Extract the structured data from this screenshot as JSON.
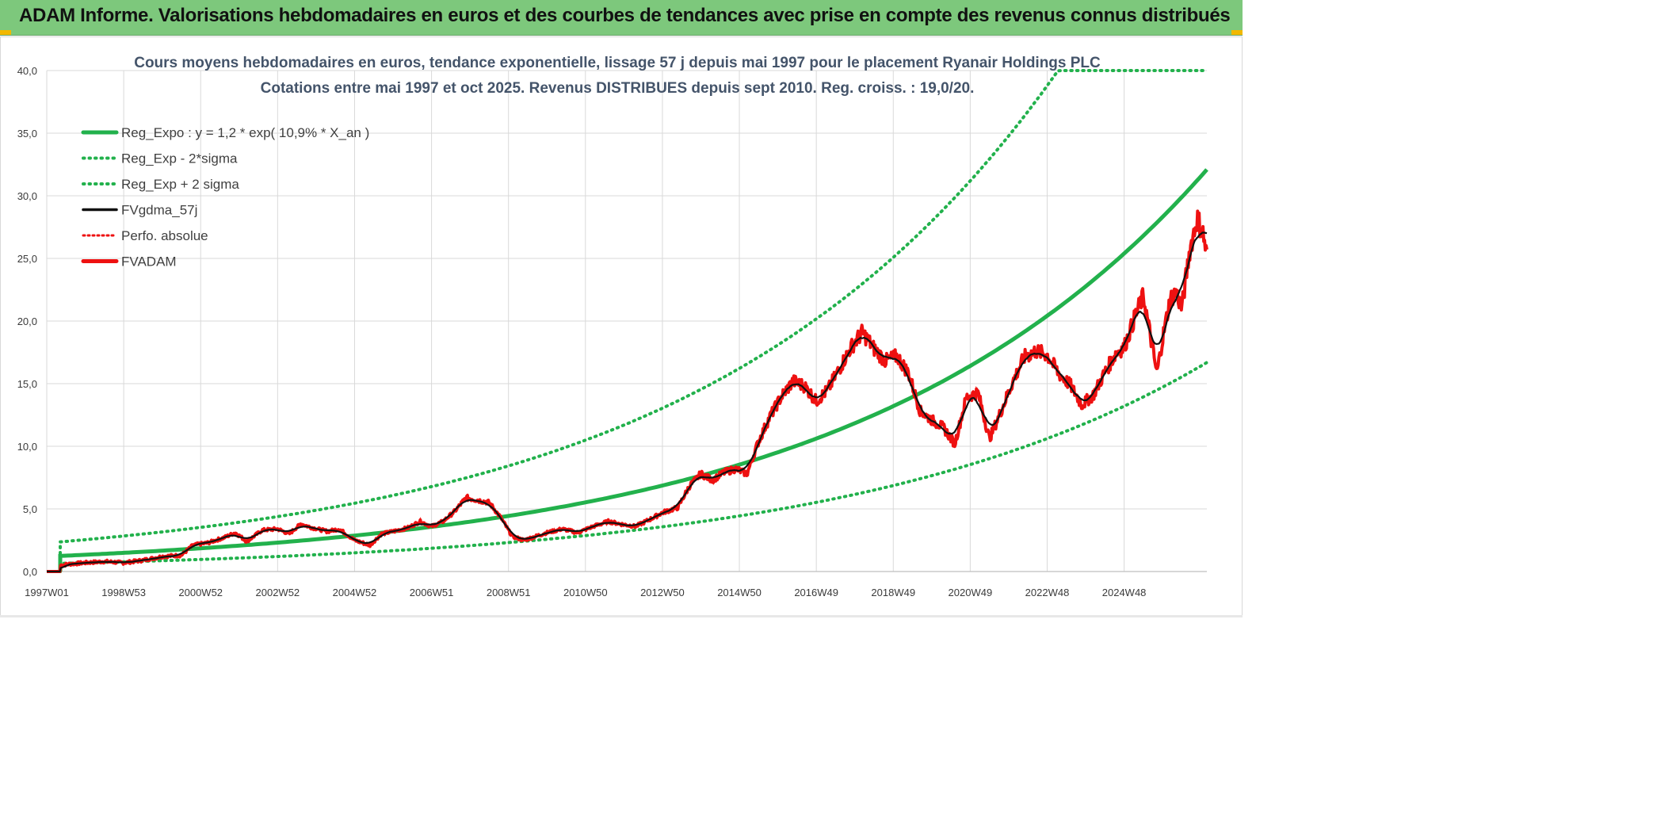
{
  "header": {
    "title": "ADAM Informe. Valorisations hebdomadaires en euros et des courbes de tendances avec prise en compte des revenus connus distribués"
  },
  "colors": {
    "header_bg": "#7dc87c",
    "green": "#22b14c",
    "green_dotted": "#22b14c",
    "black": "#111111",
    "red": "#ee1111",
    "red_dotted": "#ee1111",
    "grid": "#d9d9d9"
  },
  "chart_data": {
    "type": "line",
    "title": "Cours moyens hebdomadaires en euros, tendance exponentielle, lissage 57 j depuis mai 1997 pour le placement Ryanair Holdings PLC",
    "subtitle": "Cotations entre mai 1997 et oct 2025. Revenus DISTRIBUES depuis sept 2010. Reg. croiss. : 19,0/20.",
    "xlabel": "",
    "ylabel": "",
    "ylim": [
      0,
      40
    ],
    "yticks": [
      "0,0",
      "5,0",
      "10,0",
      "15,0",
      "20,0",
      "25,0",
      "30,0",
      "35,0",
      "40,0"
    ],
    "x_range_years": [
      1997.0,
      2025.8
    ],
    "xtick_labels": [
      "1997W01",
      "1998W53",
      "2000W52",
      "2002W52",
      "2004W52",
      "2006W51",
      "2008W51",
      "2010W50",
      "2012W50",
      "2014W50",
      "2016W49",
      "2018W49",
      "2020W49",
      "2022W48",
      "2024W48"
    ],
    "xtick_years": [
      1997.0,
      1999.0,
      2001.0,
      2003.0,
      2005.0,
      2007.0,
      2009.0,
      2011.0,
      2013.0,
      2015.0,
      2017.0,
      2019.0,
      2021.0,
      2023.0,
      2025.0
    ],
    "legend_position": "top-left",
    "regression": {
      "a": 1.2,
      "rate": 0.109,
      "start_year": 1997.35,
      "sigma_factor_upper": 1.9,
      "sigma_factor_lower": 0.52,
      "cap": 40
    },
    "series": [
      {
        "name": "Reg_Expo : y = 1,2 * exp( 10,9% *  X_an )",
        "style": "green-solid"
      },
      {
        "name": "Reg_Exp - 2*sigma",
        "style": "green-dotted"
      },
      {
        "name": "Reg_Exp + 2 sigma",
        "style": "green-dotted"
      },
      {
        "name": "FVgdma_57j",
        "style": "black-solid"
      },
      {
        "name": "Perfo. absolue",
        "style": "red-dotted"
      },
      {
        "name": "FVADAM",
        "style": "red-solid"
      }
    ],
    "fvadam_points": [
      [
        1997.0,
        0.0
      ],
      [
        1997.35,
        0.0
      ],
      [
        1997.36,
        0.5
      ],
      [
        1997.6,
        0.6
      ],
      [
        1998.0,
        0.7
      ],
      [
        1998.5,
        0.8
      ],
      [
        1999.0,
        0.7
      ],
      [
        1999.5,
        0.9
      ],
      [
        2000.0,
        1.2
      ],
      [
        2000.5,
        1.3
      ],
      [
        2000.8,
        2.1
      ],
      [
        2001.2,
        2.3
      ],
      [
        2001.6,
        2.7
      ],
      [
        2001.9,
        3.1
      ],
      [
        2002.2,
        2.4
      ],
      [
        2002.6,
        3.3
      ],
      [
        2003.0,
        3.4
      ],
      [
        2003.3,
        3.0
      ],
      [
        2003.6,
        3.8
      ],
      [
        2003.9,
        3.5
      ],
      [
        2004.3,
        3.2
      ],
      [
        2004.6,
        3.4
      ],
      [
        2005.0,
        2.5
      ],
      [
        2005.4,
        2.1
      ],
      [
        2005.7,
        3.0
      ],
      [
        2006.0,
        3.2
      ],
      [
        2006.4,
        3.5
      ],
      [
        2006.7,
        4.0
      ],
      [
        2007.0,
        3.6
      ],
      [
        2007.3,
        4.0
      ],
      [
        2007.6,
        4.8
      ],
      [
        2007.9,
        5.9
      ],
      [
        2008.2,
        5.7
      ],
      [
        2008.5,
        5.5
      ],
      [
        2008.8,
        4.3
      ],
      [
        2009.1,
        2.8
      ],
      [
        2009.4,
        2.5
      ],
      [
        2009.7,
        2.8
      ],
      [
        2010.0,
        3.1
      ],
      [
        2010.4,
        3.4
      ],
      [
        2010.8,
        3.1
      ],
      [
        2011.2,
        3.6
      ],
      [
        2011.6,
        4.0
      ],
      [
        2011.9,
        3.8
      ],
      [
        2012.3,
        3.6
      ],
      [
        2012.7,
        4.2
      ],
      [
        2013.0,
        4.7
      ],
      [
        2013.4,
        5.1
      ],
      [
        2013.7,
        6.8
      ],
      [
        2014.0,
        7.8
      ],
      [
        2014.3,
        7.3
      ],
      [
        2014.6,
        7.9
      ],
      [
        2014.9,
        8.2
      ],
      [
        2015.2,
        7.8
      ],
      [
        2015.5,
        10.4
      ],
      [
        2015.8,
        12.4
      ],
      [
        2016.1,
        14.0
      ],
      [
        2016.4,
        15.2
      ],
      [
        2016.7,
        14.8
      ],
      [
        2017.0,
        13.6
      ],
      [
        2017.3,
        14.5
      ],
      [
        2017.6,
        16.2
      ],
      [
        2017.9,
        17.9
      ],
      [
        2018.2,
        19.1
      ],
      [
        2018.5,
        17.8
      ],
      [
        2018.8,
        16.8
      ],
      [
        2019.1,
        17.2
      ],
      [
        2019.4,
        15.8
      ],
      [
        2019.7,
        12.8
      ],
      [
        2020.0,
        12.1
      ],
      [
        2020.3,
        11.5
      ],
      [
        2020.6,
        10.2
      ],
      [
        2020.9,
        13.9
      ],
      [
        2021.2,
        14.3
      ],
      [
        2021.5,
        10.6
      ],
      [
        2021.8,
        12.8
      ],
      [
        2022.1,
        15.1
      ],
      [
        2022.4,
        17.1
      ],
      [
        2022.7,
        17.6
      ],
      [
        2023.0,
        17.3
      ],
      [
        2023.3,
        15.8
      ],
      [
        2023.6,
        14.9
      ],
      [
        2023.9,
        13.3
      ],
      [
        2024.2,
        14.1
      ],
      [
        2024.5,
        15.9
      ],
      [
        2024.8,
        17.5
      ],
      [
        2025.0,
        17.9
      ],
      [
        2025.3,
        20.5
      ],
      [
        2025.5,
        22.0
      ],
      [
        2025.7,
        18.5
      ],
      [
        2025.85,
        15.8
      ],
      [
        2026.0,
        18.6
      ],
      [
        2026.2,
        21.8
      ],
      [
        2026.35,
        22.3
      ],
      [
        2026.5,
        21.0
      ],
      [
        2026.7,
        25.6
      ],
      [
        2026.9,
        28.2
      ],
      [
        2027.05,
        27.0
      ],
      [
        2027.15,
        25.2
      ]
    ]
  }
}
